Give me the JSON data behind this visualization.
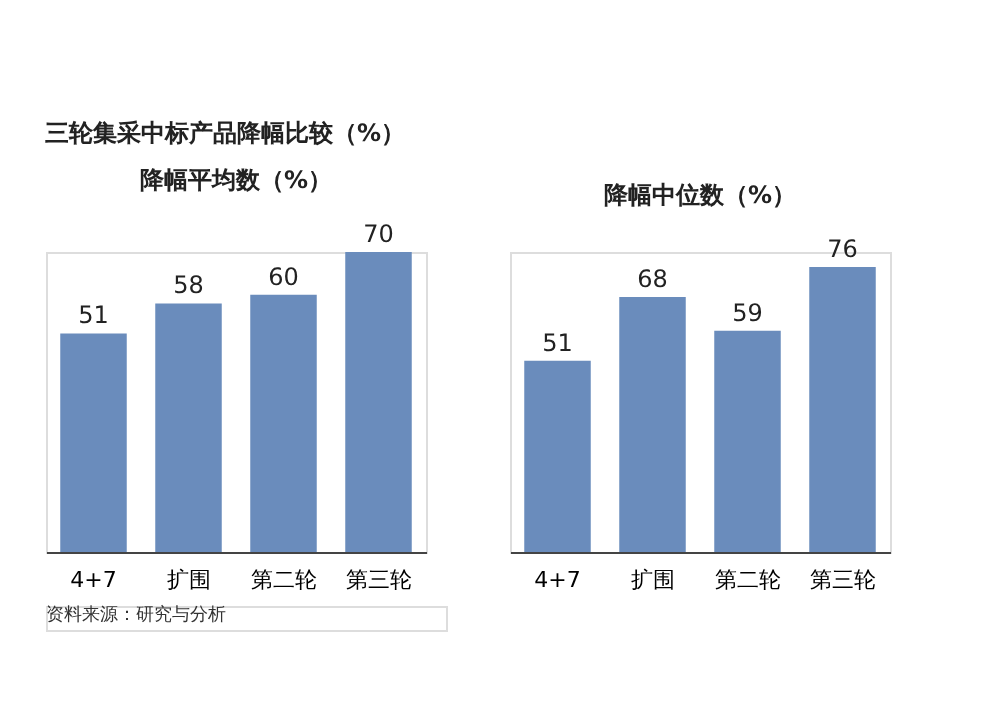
{
  "chart_data": [
    {
      "type": "bar",
      "title": "降幅平均数（%）",
      "categories": [
        "4+7",
        "扩围",
        "第二轮",
        "第三轮"
      ],
      "values": [
        51,
        58,
        60,
        70
      ],
      "color": "#6a8cbc",
      "data_labels": true,
      "tick_labels": "x",
      "grid": false,
      "annotations": [
        "三轮集采中标产品降幅比较（%）",
        "资料来源：研究与分析"
      ]
    },
    {
      "type": "bar",
      "title": "降幅中位数（%）",
      "categories": [
        "4+7",
        "扩围",
        "第二轮",
        "第三轮"
      ],
      "values": [
        51,
        68,
        59,
        76
      ],
      "color": "#6a8cbc",
      "data_labels": true,
      "tick_labels": "x",
      "grid": false
    }
  ]
}
